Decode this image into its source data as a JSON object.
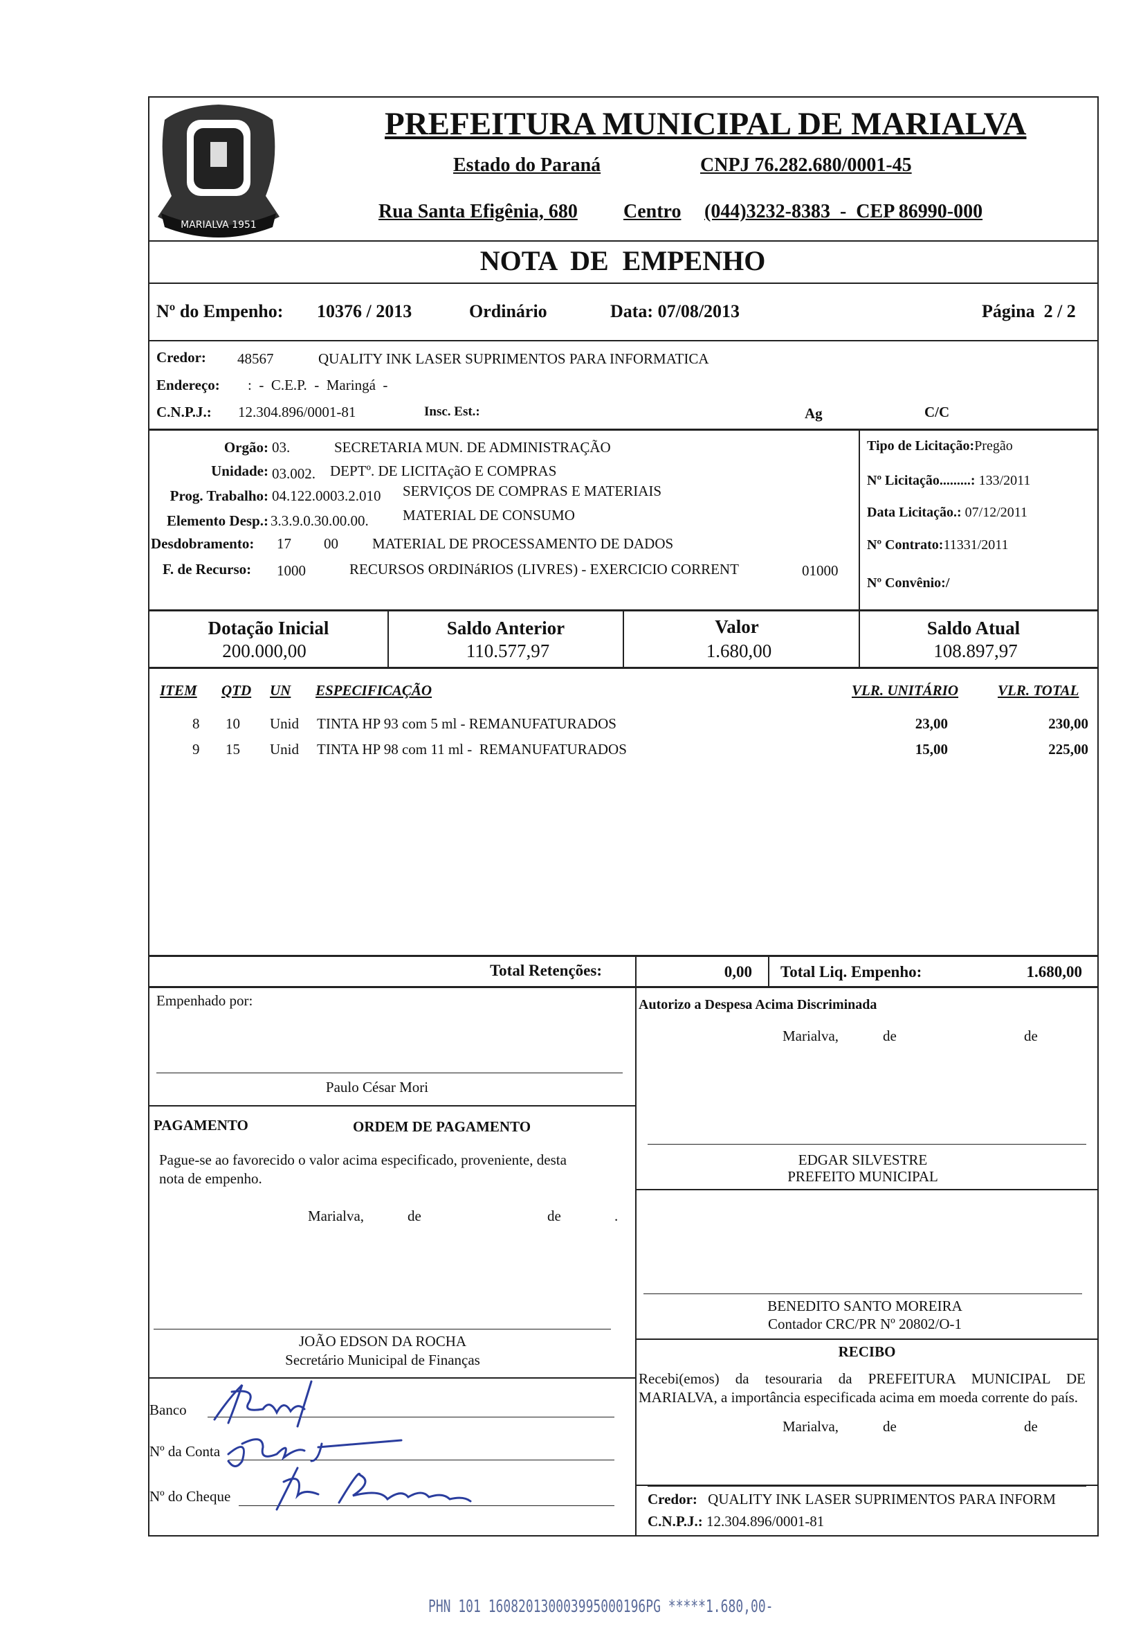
{
  "header": {
    "title": "PREFEITURA MUNICIPAL DE MARIALVA",
    "state": "Estado do Paraná",
    "cnpj": "CNPJ 76.282.680/0001-45",
    "street": "Rua Santa Efigênia, 680",
    "district": "Centro",
    "phone_cep": "(044)3232-8383  -  CEP 86990-000",
    "crest_text": "MARIALVA 1951"
  },
  "doc_title": "NOTA  DE  EMPENHO",
  "empenho": {
    "label": "Nº do Empenho:",
    "number": "10376 / 2013",
    "type": "Ordinário",
    "date": "Data: 07/08/2013",
    "page": "Página  2 / 2"
  },
  "credor": {
    "label": "Credor:",
    "code": "48567",
    "name": "QUALITY INK LASER SUPRIMENTOS PARA INFORMATICA",
    "address_label": "Endereço:",
    "address": ":  -  C.E.P.  -  Maringá  -",
    "cnpj_label": "C.N.P.J.:",
    "cnpj": "12.304.896/0001-81",
    "insc_label": "Insc. Est.:",
    "ag_label": "Ag",
    "cc_label": "C/C"
  },
  "budget": {
    "orgao_label": "Orgão:",
    "orgao_code": "03.",
    "orgao_desc": "SECRETARIA MUN. DE ADMINISTRAÇÃO",
    "unidade_label": "Unidade:",
    "unidade_code": "03.002.",
    "unidade_desc": "DEPTº. DE LICITAçãO E COMPRAS",
    "prog_label": "Prog. Trabalho:",
    "prog_code": "04.122.0003.2.010",
    "prog_desc": "SERVIÇOS DE COMPRAS E MATERIAIS",
    "elem_label": "Elemento Desp.:",
    "elem_code": "3.3.9.0.30.00.00.",
    "elem_desc": "MATERIAL DE CONSUMO",
    "desd_label": "Desdobramento:",
    "desd_code1": "17",
    "desd_code2": "00",
    "desd_desc": "MATERIAL DE PROCESSAMENTO DE DADOS",
    "rec_label": "F. de Recurso:",
    "rec_code": "1000",
    "rec_desc": "RECURSOS ORDINáRIOS (LIVRES) - EXERCICIO CORRENT",
    "rec_code2": "01000"
  },
  "licitacao": {
    "tipo_label": "Tipo de Licitação:",
    "tipo": "Pregão",
    "num_label": "Nº Licitação.........:",
    "num": " 133/2011",
    "data_label": "Data Licitação.:",
    "data": " 07/12/2011",
    "contrato_label": "Nº Contrato:",
    "contrato": "11331/2011",
    "convenio_label": "Nº Convênio:/"
  },
  "balances": [
    {
      "label": "Dotação Inicial",
      "value": "200.000,00"
    },
    {
      "label": "Saldo Anterior",
      "value": "110.577,97"
    },
    {
      "label": "Valor",
      "value": "1.680,00"
    },
    {
      "label": "Saldo Atual",
      "value": "108.897,97"
    }
  ],
  "items_header": {
    "item": "ITEM",
    "qtd": "QTD",
    "un": "UN",
    "spec": "ESPECIFICAÇÃO",
    "unit": "VLR. UNITÁRIO",
    "total": "VLR. TOTAL"
  },
  "items": [
    {
      "item": "8",
      "qtd": "10",
      "un": "Unid",
      "spec": "TINTA HP 93 com 5 ml - REMANUFATURADOS",
      "unit": "23,00",
      "total": "230,00"
    },
    {
      "item": "9",
      "qtd": "15",
      "un": "Unid",
      "spec": "TINTA HP 98 com 11 ml -  REMANUFATURADOS",
      "unit": "15,00",
      "total": "225,00"
    }
  ],
  "totals": {
    "ret_label": "Total Retenções:",
    "ret": "0,00",
    "liq_label": "Total Liq. Empenho:",
    "liq": "1.680,00"
  },
  "left": {
    "empenhado": "Empenhado por:",
    "empenhado_name": "Paulo César Mori",
    "pag_label": "PAGAMENTO",
    "ordem_label": "ORDEM DE PAGAMENTO",
    "pague_1": "Pague-se ao favorecido o valor acima especificado, proveniente, desta",
    "pague_2": "nota de empenho.",
    "city": "Marialva,",
    "de1": "de",
    "de2": "de",
    "dot": ".",
    "sec_name": "JOÃO EDSON DA ROCHA",
    "sec_role": "Secretário Municipal de Finanças",
    "banco": "Banco",
    "conta": "Nº da Conta",
    "cheque": "Nº do Cheque"
  },
  "right": {
    "autorizo": "Autorizo a Despesa Acima Discriminada",
    "city": "Marialva,",
    "de1": "de",
    "de2": "de",
    "mayor_name": "EDGAR SILVESTRE",
    "mayor_role": "PREFEITO MUNICIPAL",
    "acc_name": "BENEDITO SANTO MOREIRA",
    "acc_role": "Contador CRC/PR Nº 20802/O-1",
    "recibo": "RECIBO",
    "recibo_text": "Recebi(emos) da tesouraria da PREFEITURA MUNICIPAL DE MARIALVA, a importância especificada acima em moeda corrente do país.",
    "credor_label": "Credor:",
    "credor": "QUALITY INK LASER SUPRIMENTOS PARA INFORM",
    "cnpj_label": "C.N.P.J.:",
    "cnpj": "12.304.896/0001-81"
  },
  "footer_code": "PHN 101 160820130003995000196PG *****1.680,00-",
  "colors": {
    "ink": "#111111",
    "signature": "#2a3d9e",
    "stamp": "#5a6b9a"
  }
}
